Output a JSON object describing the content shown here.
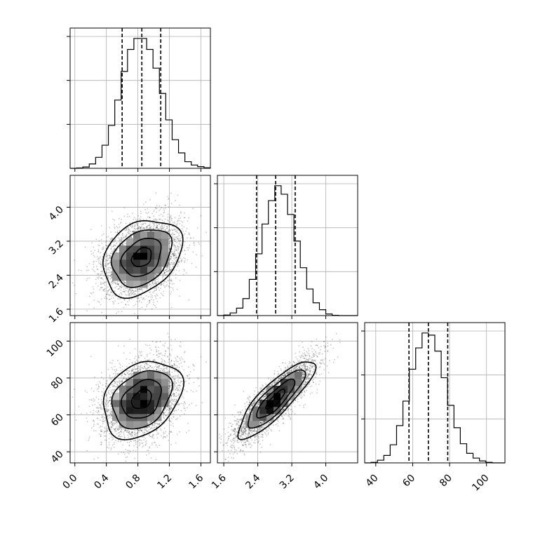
{
  "chart_data": {
    "type": "corner",
    "params": [
      {
        "ticks": [
          0.0,
          0.4,
          0.8,
          1.2,
          1.6
        ],
        "tick_labels": [
          "0.0",
          "0.4",
          "0.8",
          "1.2",
          "1.6"
        ],
        "range": [
          -0.06,
          1.72
        ],
        "mean": 0.85,
        "sd": 0.25,
        "quantiles": [
          0.6,
          0.85,
          1.09
        ]
      },
      {
        "ticks": [
          1.6,
          2.4,
          3.2,
          4.0
        ],
        "tick_labels": [
          "1.6",
          "2.4",
          "3.2",
          "4.0"
        ],
        "range": [
          1.45,
          4.75
        ],
        "mean": 2.82,
        "sd": 0.45,
        "quantiles": [
          2.37,
          2.82,
          3.28
        ]
      },
      {
        "ticks": [
          40,
          60,
          80,
          100
        ],
        "tick_labels": [
          "40",
          "60",
          "80",
          "100"
        ],
        "range": [
          34,
          110
        ],
        "mean": 68.5,
        "sd": 10.5,
        "quantiles": [
          58,
          68.5,
          79
        ]
      }
    ],
    "histograms": [
      {
        "param": 0,
        "edges_range": [
          -0.06,
          1.72
        ],
        "counts": [
          0,
          3,
          12,
          40,
          100,
          210,
          390,
          620,
          880,
          1080,
          1180,
          1180,
          1080,
          910,
          680,
          440,
          260,
          140,
          60,
          30,
          15,
          5
        ]
      },
      {
        "param": 1,
        "edges_range": [
          1.45,
          4.75
        ],
        "counts": [
          0,
          5,
          25,
          70,
          160,
          340,
          580,
          860,
          1080,
          1220,
          1140,
          950,
          700,
          450,
          250,
          120,
          55,
          15,
          3,
          0,
          0,
          0
        ]
      },
      {
        "param": 2,
        "edges_range": [
          34,
          110
        ],
        "counts": [
          0,
          5,
          25,
          70,
          170,
          350,
          580,
          880,
          1080,
          1220,
          1200,
          1050,
          800,
          540,
          330,
          180,
          90,
          45,
          18,
          5,
          0,
          0
        ]
      }
    ],
    "correlations": [
      {
        "params": [
          0,
          1
        ],
        "rho": 0.3
      },
      {
        "params": [
          0,
          2
        ],
        "rho": 0.3
      },
      {
        "params": [
          1,
          2
        ],
        "rho": 0.85
      }
    ],
    "n_samples": 4000,
    "grid": true,
    "contour_levels_sigma": [
      0.5,
      1.0,
      1.5,
      2.0
    ]
  }
}
